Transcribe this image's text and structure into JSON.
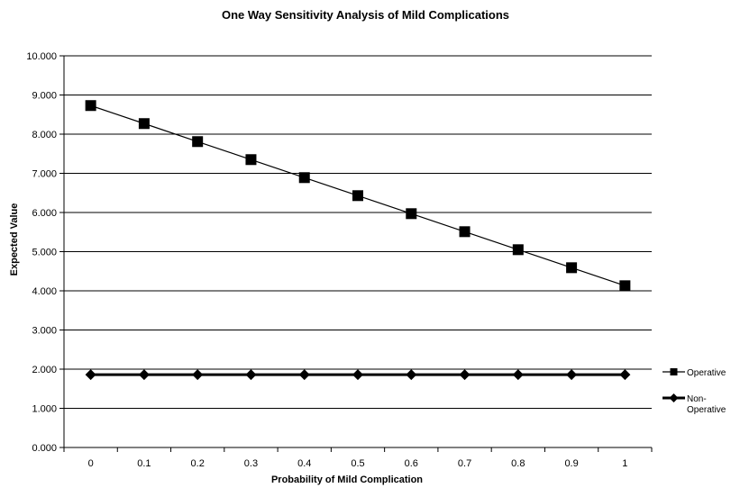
{
  "chart_data": {
    "type": "line",
    "title": "One Way Sensitivity Analysis of Mild Complications",
    "xlabel": "Probability of Mild Complication",
    "ylabel": "Expected Value",
    "x": [
      0,
      0.1,
      0.2,
      0.3,
      0.4,
      0.5,
      0.6,
      0.7,
      0.8,
      0.9,
      1
    ],
    "x_tick_labels": [
      "0",
      "0.1",
      "0.2",
      "0.3",
      "0.4",
      "0.5",
      "0.6",
      "0.7",
      "0.8",
      "0.9",
      "1"
    ],
    "y_tick_labels": [
      "0.000",
      "1.000",
      "2.000",
      "3.000",
      "4.000",
      "5.000",
      "6.000",
      "7.000",
      "8.000",
      "9.000",
      "10.000"
    ],
    "ylim": [
      0,
      10
    ],
    "grid": "horizontal",
    "legend_position": "right",
    "series": [
      {
        "name": "Operative",
        "marker": "square",
        "color": "#000000",
        "values": [
          8.73,
          8.27,
          7.81,
          7.35,
          6.89,
          6.43,
          5.97,
          5.51,
          5.05,
          4.59,
          4.13
        ]
      },
      {
        "name": "Non-\nOperative",
        "marker": "diamond",
        "color": "#000000",
        "values": [
          1.86,
          1.86,
          1.86,
          1.86,
          1.86,
          1.86,
          1.86,
          1.86,
          1.86,
          1.86,
          1.86
        ]
      }
    ]
  }
}
